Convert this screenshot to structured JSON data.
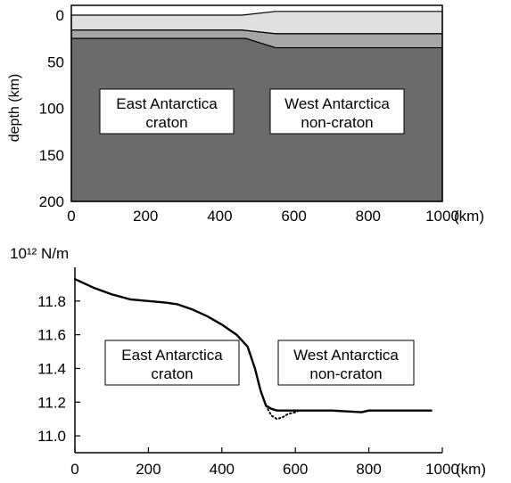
{
  "chart_data": [
    {
      "type": "area",
      "ylabel": "depth (km)",
      "xunit": "(km)",
      "xlim": [
        0,
        1000
      ],
      "ylim": [
        200,
        0
      ],
      "xticks": [
        0,
        200,
        400,
        600,
        800,
        1000
      ],
      "yticks": [
        0,
        50,
        100,
        150,
        200
      ],
      "layers": [
        {
          "top": [
            [
              0,
              0
            ],
            [
              460,
              0
            ],
            [
              550,
              -4
            ],
            [
              1000,
              -4
            ]
          ],
          "bottom": [
            [
              0,
              16
            ],
            [
              460,
              16
            ],
            [
              550,
              20
            ],
            [
              1000,
              20
            ]
          ],
          "color": "#e0e0e0"
        },
        {
          "top": [
            [
              0,
              16
            ],
            [
              460,
              16
            ],
            [
              550,
              20
            ],
            [
              1000,
              20
            ]
          ],
          "bottom": [
            [
              0,
              25
            ],
            [
              470,
              25
            ],
            [
              550,
              35
            ],
            [
              1000,
              35
            ]
          ],
          "color": "#a6a6a6"
        },
        {
          "top": [
            [
              0,
              25
            ],
            [
              470,
              25
            ],
            [
              550,
              35
            ],
            [
              1000,
              35
            ]
          ],
          "bottom": [
            [
              0,
              200
            ],
            [
              1000,
              200
            ]
          ],
          "color": "#6b6b6b"
        }
      ],
      "annotations": [
        {
          "lines": [
            "East Antarctica",
            "craton"
          ]
        },
        {
          "lines": [
            "West Antarctica",
            "non-craton"
          ]
        }
      ]
    },
    {
      "type": "line",
      "yunit": "10¹² N/m",
      "xunit": "(km)",
      "xlim": [
        0,
        1000
      ],
      "ylim": [
        10.9,
        12.0
      ],
      "xticks": [
        0,
        200,
        400,
        600,
        800,
        1000
      ],
      "yticks": [
        11.0,
        11.2,
        11.4,
        11.6,
        11.8
      ],
      "series": [
        {
          "style": "solid",
          "x": [
            0,
            50,
            100,
            150,
            200,
            250,
            280,
            320,
            360,
            400,
            440,
            470,
            490,
            505,
            520,
            535,
            550,
            600,
            700,
            780,
            800,
            900,
            970
          ],
          "y": [
            11.93,
            11.88,
            11.84,
            11.81,
            11.8,
            11.79,
            11.78,
            11.75,
            11.71,
            11.66,
            11.6,
            11.53,
            11.4,
            11.27,
            11.18,
            11.16,
            11.15,
            11.15,
            11.15,
            11.14,
            11.15,
            11.15,
            11.15
          ]
        },
        {
          "style": "dotted",
          "x": [
            520,
            535,
            550,
            565,
            580,
            600,
            610
          ],
          "y": [
            11.18,
            11.12,
            11.1,
            11.11,
            11.13,
            11.14,
            11.15
          ]
        }
      ],
      "annotations": [
        {
          "lines": [
            "East Antarctica",
            "craton"
          ]
        },
        {
          "lines": [
            "West Antarctica",
            "non-craton"
          ]
        }
      ]
    }
  ]
}
